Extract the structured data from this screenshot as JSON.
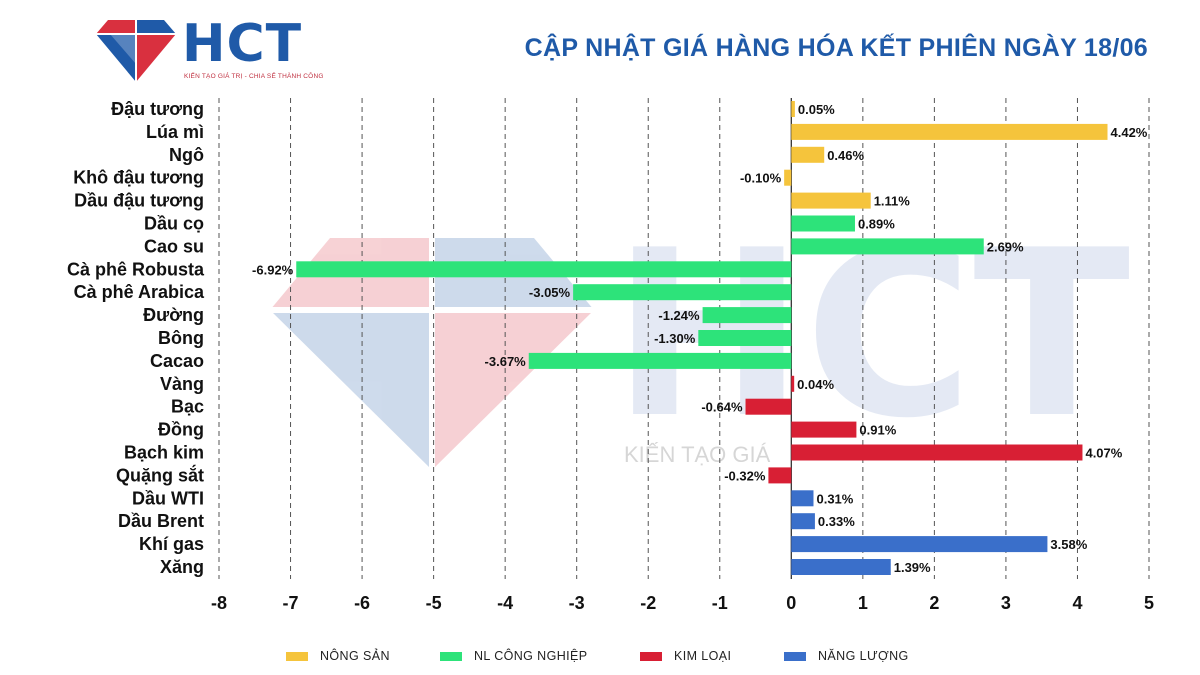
{
  "header": {
    "logo_text": "HCT",
    "logo_tagline": "KIẾN TẠO GIÁ TRỊ - CHIA SẺ THÀNH CÔNG",
    "title": "CẬP NHẬT GIÁ HÀNG HÓA KẾT PHIÊN NGÀY 18/06"
  },
  "watermark": {
    "text": "HCT",
    "tagline": "KIẾN TẠO GIÁ"
  },
  "colors": {
    "brand_blue": "#1f5aa8",
    "brand_red": "#d9303f",
    "nong_san": "#f5c43c",
    "nl_cong_nghiep": "#2de37a",
    "kim_loai": "#d81f34",
    "nang_luong": "#3a6fca"
  },
  "chart_data": {
    "type": "bar",
    "orientation": "horizontal",
    "title": "CẬP NHẬT GIÁ HÀNG HÓA KẾT PHIÊN NGÀY 18/06",
    "xlabel": "",
    "ylabel": "",
    "xlim": [
      -8,
      5
    ],
    "xticks": [
      -8,
      -7,
      -6,
      -5,
      -4,
      -3,
      -2,
      -1,
      0,
      1,
      2,
      3,
      4,
      5
    ],
    "grid": "vertical",
    "legend_position": "bottom",
    "categories": [
      "Đậu tương",
      "Lúa mì",
      "Ngô",
      "Khô đậu tương",
      "Dầu đậu tương",
      "Dầu cọ",
      "Cao su",
      "Cà phê Robusta",
      "Cà phê Arabica",
      "Đường",
      "Bông",
      "Cacao",
      "Vàng",
      "Bạc",
      "Đồng",
      "Bạch kim",
      "Quặng sắt",
      "Dầu WTI",
      "Dầu Brent",
      "Khí gas",
      "Xăng"
    ],
    "values": [
      0.05,
      4.42,
      0.46,
      -0.1,
      1.11,
      0.89,
      2.69,
      -6.92,
      -3.05,
      -1.24,
      -1.3,
      -3.67,
      0.04,
      -0.64,
      0.91,
      4.07,
      -0.32,
      0.31,
      0.33,
      3.58,
      1.39
    ],
    "labels": [
      "0.05%",
      "4.42%",
      "0.46%",
      "-0.10%",
      "1.11%",
      "0.89%",
      "2.69%",
      "-6.92%",
      "-3.05%",
      "-1.24%",
      "-1.30%",
      "-3.67%",
      "0.04%",
      "-0.64%",
      "0.91%",
      "4.07%",
      "-0.32%",
      "0.31%",
      "0.33%",
      "3.58%",
      "1.39%"
    ],
    "groups": [
      "nong_san",
      "nong_san",
      "nong_san",
      "nong_san",
      "nong_san",
      "nl_cong_nghiep",
      "nl_cong_nghiep",
      "nl_cong_nghiep",
      "nl_cong_nghiep",
      "nl_cong_nghiep",
      "nl_cong_nghiep",
      "nl_cong_nghiep",
      "kim_loai",
      "kim_loai",
      "kim_loai",
      "kim_loai",
      "kim_loai",
      "nang_luong",
      "nang_luong",
      "nang_luong",
      "nang_luong"
    ],
    "legend": [
      {
        "key": "nong_san",
        "name": "NÔNG SẢN",
        "color": "#f5c43c"
      },
      {
        "key": "nl_cong_nghiep",
        "name": "NL CÔNG NGHIỆP",
        "color": "#2de37a"
      },
      {
        "key": "kim_loai",
        "name": "KIM LOẠI",
        "color": "#d81f34"
      },
      {
        "key": "nang_luong",
        "name": "NĂNG LƯỢNG",
        "color": "#3a6fca"
      }
    ]
  }
}
